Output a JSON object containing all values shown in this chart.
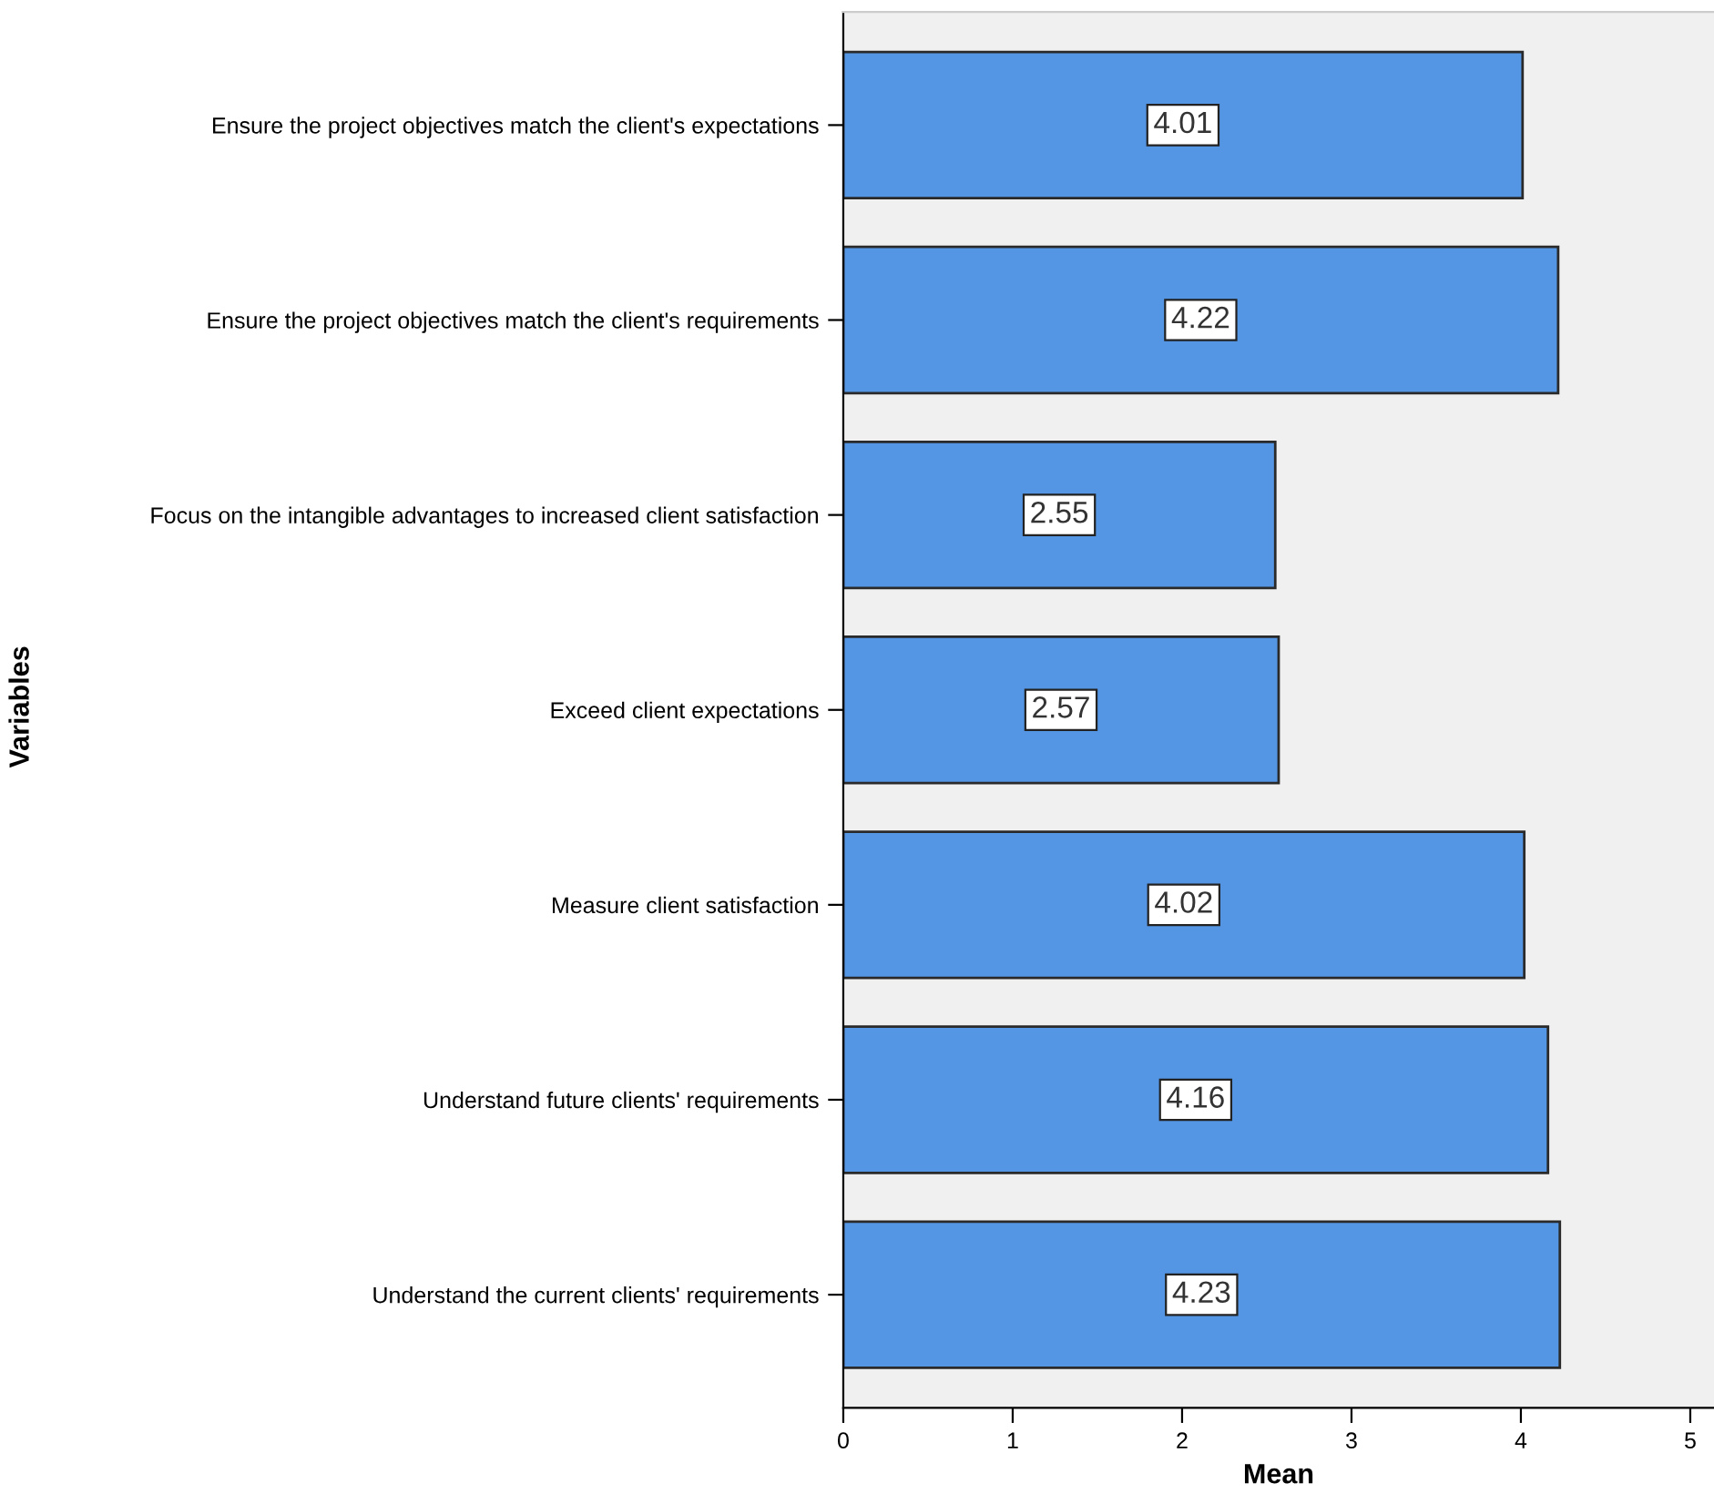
{
  "chart_data": {
    "type": "bar",
    "orientation": "horizontal",
    "xlabel": "Mean",
    "ylabel": "Variables",
    "categories": [
      "Ensure the project objectives match the client's expectations",
      "Ensure the project objectives match the client's requirements",
      "Focus on the intangible advantages to increased client satisfaction",
      "Exceed client expectations",
      "Measure client satisfaction",
      "Understand future clients' requirements",
      "Understand the current clients' requirements"
    ],
    "values": [
      4.01,
      4.22,
      2.55,
      2.57,
      4.02,
      4.16,
      4.23
    ],
    "color": "#5596e4",
    "xlim": [
      0,
      5.14
    ],
    "xticks": [
      0,
      1,
      2,
      3,
      4,
      5
    ],
    "data_labels": true,
    "grid": false
  }
}
